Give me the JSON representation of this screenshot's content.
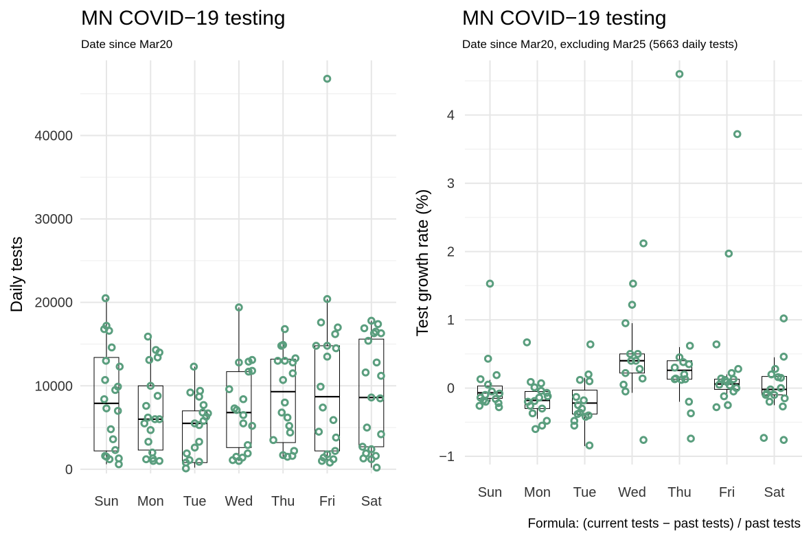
{
  "chart_data": [
    {
      "type": "boxplot",
      "title": "MN COVID−19 testing",
      "subtitle": "Date since Mar20",
      "xlabel": "",
      "ylabel": "Daily tests",
      "categories": [
        "Sun",
        "Mon",
        "Tue",
        "Wed",
        "Thu",
        "Fri",
        "Sat"
      ],
      "ylim": [
        -500,
        49000
      ],
      "yticks": [
        0,
        10000,
        20000,
        30000,
        40000
      ],
      "yticklabels": [
        "0",
        "10000",
        "20000",
        "30000",
        "40000"
      ],
      "point_color": "#5a9e7e",
      "boxes": [
        {
          "min": 600,
          "q1": 2200,
          "median": 7900,
          "q3": 13400,
          "max": 20500
        },
        {
          "min": 1000,
          "q1": 2300,
          "median": 6000,
          "q3": 10000,
          "max": 16000
        },
        {
          "min": 200,
          "q1": 800,
          "median": 5500,
          "q3": 7000,
          "max": 12300
        },
        {
          "min": 1000,
          "q1": 2600,
          "median": 6800,
          "q3": 11700,
          "max": 19400
        },
        {
          "min": 1500,
          "q1": 3200,
          "median": 9300,
          "q3": 13200,
          "max": 16800
        },
        {
          "min": 800,
          "q1": 2200,
          "median": 8700,
          "q3": 14800,
          "max": 20400
        },
        {
          "min": 200,
          "q1": 2700,
          "median": 8600,
          "q3": 15600,
          "max": 17800
        }
      ],
      "points": [
        [
          [
            -0.02,
            20500
          ],
          [
            0.0,
            17200
          ],
          [
            0.06,
            16600
          ],
          [
            -0.05,
            16800
          ],
          [
            0.12,
            14600
          ],
          [
            0.3,
            12300
          ],
          [
            -0.01,
            13000
          ],
          [
            -0.03,
            10700
          ],
          [
            0.26,
            9900
          ],
          [
            0.2,
            9500
          ],
          [
            -0.05,
            8400
          ],
          [
            0.0,
            7300
          ],
          [
            0.26,
            7000
          ],
          [
            0.1,
            4800
          ],
          [
            0.15,
            3600
          ],
          [
            0.2,
            2300
          ],
          [
            0.28,
            1300
          ],
          [
            -0.03,
            1600
          ],
          [
            0.07,
            1200
          ],
          [
            0.28,
            600
          ],
          [
            0.0,
            1500
          ]
        ],
        [
          [
            -0.06,
            15900
          ],
          [
            0.12,
            14300
          ],
          [
            0.16,
            13400
          ],
          [
            -0.03,
            13100
          ],
          [
            0.2,
            14000
          ],
          [
            0.0,
            10000
          ],
          [
            0.16,
            8800
          ],
          [
            -0.1,
            7600
          ],
          [
            -0.06,
            6200
          ],
          [
            0.1,
            6000
          ],
          [
            0.2,
            6000
          ],
          [
            -0.14,
            5500
          ],
          [
            0.0,
            4700
          ],
          [
            -0.05,
            3300
          ],
          [
            0.04,
            2000
          ],
          [
            -0.1,
            1200
          ],
          [
            0.05,
            1300
          ],
          [
            0.2,
            1000
          ],
          [
            0.06,
            1000
          ]
        ],
        [
          [
            -0.02,
            12300
          ],
          [
            0.12,
            9400
          ],
          [
            0.1,
            8700
          ],
          [
            -0.1,
            9200
          ],
          [
            0.2,
            7700
          ],
          [
            0.3,
            6700
          ],
          [
            0.18,
            6800
          ],
          [
            0.26,
            6300
          ],
          [
            0.0,
            5500
          ],
          [
            0.1,
            5300
          ],
          [
            0.2,
            5800
          ],
          [
            0.1,
            3300
          ],
          [
            0.0,
            2600
          ],
          [
            -0.18,
            1900
          ],
          [
            -0.12,
            1100
          ],
          [
            -0.2,
            800
          ],
          [
            0.1,
            900
          ],
          [
            -0.2,
            100
          ]
        ],
        [
          [
            0.0,
            19400
          ],
          [
            0.22,
            12900
          ],
          [
            0.3,
            13100
          ],
          [
            0.0,
            12800
          ],
          [
            0.22,
            11700
          ],
          [
            0.3,
            11800
          ],
          [
            -0.22,
            9600
          ],
          [
            0.1,
            8400
          ],
          [
            -0.1,
            7300
          ],
          [
            -0.05,
            7100
          ],
          [
            0.1,
            6500
          ],
          [
            0.1,
            5500
          ],
          [
            0.3,
            5200
          ],
          [
            0.2,
            2900
          ],
          [
            0.2,
            1900
          ],
          [
            0.08,
            1400
          ],
          [
            -0.06,
            1500
          ],
          [
            -0.14,
            1100
          ],
          [
            0.0,
            1000
          ]
        ],
        [
          [
            0.04,
            16800
          ],
          [
            -0.04,
            14800
          ],
          [
            0.0,
            14900
          ],
          [
            0.28,
            13300
          ],
          [
            0.04,
            13000
          ],
          [
            0.22,
            12800
          ],
          [
            -0.12,
            13000
          ],
          [
            0.22,
            11500
          ],
          [
            0.0,
            10700
          ],
          [
            0.04,
            8000
          ],
          [
            -0.03,
            6800
          ],
          [
            0.1,
            6200
          ],
          [
            0.14,
            5200
          ],
          [
            0.16,
            4400
          ],
          [
            -0.22,
            3500
          ],
          [
            0.25,
            2200
          ],
          [
            0.0,
            1700
          ],
          [
            0.21,
            1600
          ],
          [
            0.1,
            1500
          ]
        ],
        [
          [
            0.0,
            46800
          ],
          [
            0.0,
            20400
          ],
          [
            -0.14,
            17600
          ],
          [
            0.24,
            17000
          ],
          [
            0.18,
            16200
          ],
          [
            -0.25,
            14800
          ],
          [
            0.0,
            14800
          ],
          [
            0.2,
            14500
          ],
          [
            0.0,
            13500
          ],
          [
            -0.15,
            9900
          ],
          [
            -0.1,
            7400
          ],
          [
            0.14,
            5900
          ],
          [
            -0.19,
            4500
          ],
          [
            0.2,
            3800
          ],
          [
            0.18,
            2200
          ],
          [
            0.0,
            1800
          ],
          [
            -0.08,
            1400
          ],
          [
            0.14,
            1200
          ],
          [
            -0.12,
            1000
          ],
          [
            0.06,
            800
          ]
        ],
        [
          [
            0.0,
            17800
          ],
          [
            0.15,
            17400
          ],
          [
            -0.16,
            16900
          ],
          [
            0.1,
            16500
          ],
          [
            0.06,
            16300
          ],
          [
            0.22,
            16300
          ],
          [
            -0.07,
            15400
          ],
          [
            0.12,
            12800
          ],
          [
            -0.13,
            11600
          ],
          [
            0.22,
            11200
          ],
          [
            0.0,
            8600
          ],
          [
            0.2,
            8500
          ],
          [
            -0.1,
            5000
          ],
          [
            0.22,
            4200
          ],
          [
            -0.2,
            2700
          ],
          [
            0.0,
            2400
          ],
          [
            -0.12,
            1900
          ],
          [
            0.1,
            1600
          ],
          [
            0.0,
            1200
          ],
          [
            -0.18,
            1300
          ],
          [
            0.12,
            200
          ]
        ]
      ]
    },
    {
      "type": "boxplot",
      "title": "MN COVID−19 testing",
      "subtitle": "Date since Mar20, excluding Mar25 (5663 daily tests)",
      "xlabel": "",
      "ylabel": "Test growth rate (%)",
      "caption": "Formula: (current tests − past tests) / past tests",
      "categories": [
        "Sun",
        "Mon",
        "Tue",
        "Wed",
        "Thu",
        "Fri",
        "Sat"
      ],
      "ylim": [
        -1.12,
        4.8
      ],
      "yticks": [
        -1,
        0,
        1,
        2,
        3,
        4
      ],
      "yticklabels": [
        "−1",
        "0",
        "1",
        "2",
        "3",
        "4"
      ],
      "point_color": "#5a9e7e",
      "boxes": [
        {
          "min": -0.2,
          "q1": -0.15,
          "median": -0.07,
          "q3": 0.03,
          "max": 0.12
        },
        {
          "min": -0.45,
          "q1": -0.3,
          "median": -0.18,
          "q3": -0.05,
          "max": 0.05
        },
        {
          "min": -0.85,
          "q1": -0.38,
          "median": -0.22,
          "q3": -0.03,
          "max": 0.15
        },
        {
          "min": -0.07,
          "q1": 0.22,
          "median": 0.4,
          "q3": 0.5,
          "max": 0.95
        },
        {
          "min": -0.2,
          "q1": 0.13,
          "median": 0.26,
          "q3": 0.4,
          "max": 0.6
        },
        {
          "min": -0.12,
          "q1": -0.02,
          "median": 0.06,
          "q3": 0.13,
          "max": 0.2
        },
        {
          "min": -0.25,
          "q1": -0.1,
          "median": -0.02,
          "q3": 0.17,
          "max": 0.45
        }
      ],
      "points": [
        [
          [
            0.0,
            1.53
          ],
          [
            -0.04,
            0.43
          ],
          [
            -0.2,
            0.13
          ],
          [
            0.14,
            0.19
          ],
          [
            -0.04,
            0.05
          ],
          [
            -0.1,
            -0.1
          ],
          [
            -0.2,
            -0.14
          ],
          [
            -0.14,
            -0.18
          ],
          [
            -0.09,
            -0.2
          ],
          [
            0.04,
            -0.05
          ],
          [
            0.2,
            -0.08
          ],
          [
            0.12,
            -0.16
          ],
          [
            0.18,
            -0.22
          ],
          [
            -0.22,
            -0.26
          ],
          [
            0.19,
            -0.28
          ]
        ],
        [
          [
            -0.22,
            0.67
          ],
          [
            -0.14,
            0.09
          ],
          [
            0.08,
            0.07
          ],
          [
            -0.06,
            0.01
          ],
          [
            0.08,
            -0.04
          ],
          [
            0.2,
            -0.07
          ],
          [
            0.22,
            -0.12
          ],
          [
            0.04,
            -0.14
          ],
          [
            -0.06,
            -0.19
          ],
          [
            -0.2,
            -0.2
          ],
          [
            -0.15,
            -0.26
          ],
          [
            0.1,
            -0.3
          ],
          [
            0.2,
            -0.48
          ],
          [
            0.1,
            -0.55
          ],
          [
            -0.1,
            -0.37
          ],
          [
            -0.04,
            -0.6
          ]
        ],
        [
          [
            0.12,
            0.64
          ],
          [
            0.08,
            0.2
          ],
          [
            0.1,
            0.1
          ],
          [
            -0.1,
            0.12
          ],
          [
            -0.18,
            -0.13
          ],
          [
            -0.02,
            -0.18
          ],
          [
            -0.14,
            -0.25
          ],
          [
            -0.06,
            -0.3
          ],
          [
            -0.1,
            -0.36
          ],
          [
            0.02,
            -0.42
          ],
          [
            -0.22,
            -0.48
          ],
          [
            -0.22,
            -0.55
          ],
          [
            0.1,
            -0.84
          ],
          [
            0.08,
            -0.4
          ],
          [
            -0.15,
            -0.38
          ]
        ],
        [
          [
            0.24,
            2.12
          ],
          [
            0.02,
            1.53
          ],
          [
            0.0,
            1.22
          ],
          [
            -0.14,
            0.95
          ],
          [
            -0.04,
            0.5
          ],
          [
            0.12,
            0.5
          ],
          [
            0.08,
            0.4
          ],
          [
            -0.02,
            0.4
          ],
          [
            0.16,
            0.28
          ],
          [
            -0.14,
            0.22
          ],
          [
            0.22,
            0.14
          ],
          [
            -0.18,
            0.05
          ],
          [
            -0.14,
            -0.05
          ],
          [
            0.24,
            -0.76
          ]
        ],
        [
          [
            0.0,
            4.6
          ],
          [
            0.22,
            0.62
          ],
          [
            0.0,
            0.45
          ],
          [
            0.08,
            0.38
          ],
          [
            0.2,
            0.35
          ],
          [
            -0.1,
            0.3
          ],
          [
            0.1,
            0.2
          ],
          [
            -0.08,
            0.14
          ],
          [
            0.12,
            0.13
          ],
          [
            0.04,
            0.12
          ],
          [
            -0.1,
            0.13
          ],
          [
            0.2,
            -0.2
          ],
          [
            0.24,
            -0.37
          ],
          [
            0.24,
            -0.74
          ]
        ],
        [
          [
            0.22,
            3.72
          ],
          [
            0.04,
            1.97
          ],
          [
            -0.22,
            0.64
          ],
          [
            -0.12,
            0.14
          ],
          [
            0.24,
            0.28
          ],
          [
            0.1,
            0.22
          ],
          [
            0.14,
            0.13
          ],
          [
            -0.04,
            0.12
          ],
          [
            0.0,
            0.09
          ],
          [
            -0.16,
            0.05
          ],
          [
            0.06,
            0.04
          ],
          [
            0.2,
            0.0
          ],
          [
            0.14,
            -0.05
          ],
          [
            -0.06,
            -0.12
          ],
          [
            0.02,
            -0.25
          ],
          [
            -0.22,
            -0.28
          ]
        ],
        [
          [
            0.2,
            1.02
          ],
          [
            0.2,
            0.46
          ],
          [
            0.02,
            0.28
          ],
          [
            -0.06,
            0.2
          ],
          [
            0.08,
            0.16
          ],
          [
            0.14,
            0.15
          ],
          [
            0.14,
            0.0
          ],
          [
            -0.08,
            -0.02
          ],
          [
            0.0,
            -0.1
          ],
          [
            -0.16,
            -0.08
          ],
          [
            -0.18,
            -0.1
          ],
          [
            0.22,
            -0.15
          ],
          [
            -0.1,
            -0.2
          ],
          [
            0.18,
            -0.27
          ],
          [
            -0.22,
            -0.73
          ],
          [
            0.2,
            -0.76
          ]
        ]
      ]
    }
  ]
}
